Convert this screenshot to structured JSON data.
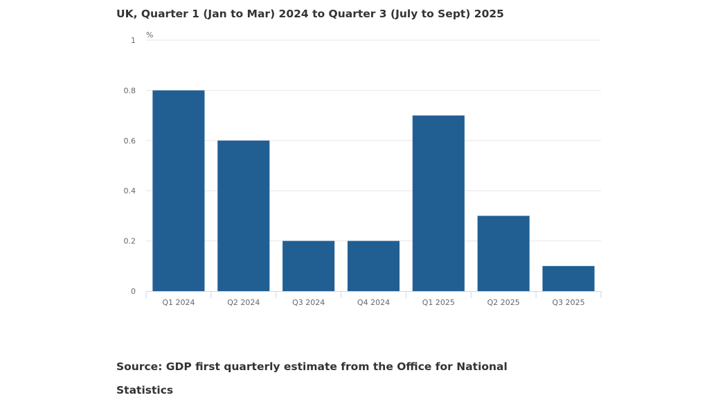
{
  "chart_data": {
    "type": "bar",
    "title": "UK, Quarter 1 (Jan to Mar) 2024 to Quarter 3 (July to Sept) 2025",
    "ylabel": "%",
    "xlabel": "",
    "categories": [
      "Q1 2024",
      "Q2 2024",
      "Q3 2024",
      "Q4 2024",
      "Q1 2025",
      "Q2 2025",
      "Q3 2025"
    ],
    "values": [
      0.8,
      0.6,
      0.2,
      0.2,
      0.7,
      0.3,
      0.1
    ],
    "ylim": [
      0,
      1
    ],
    "yticks": [
      "0",
      "0.2",
      "0.4",
      "0.6",
      "0.8",
      "1"
    ],
    "grid": true,
    "bar_color": "#215f93"
  },
  "source": "Source: GDP first quarterly estimate from the Office for National Statistics"
}
